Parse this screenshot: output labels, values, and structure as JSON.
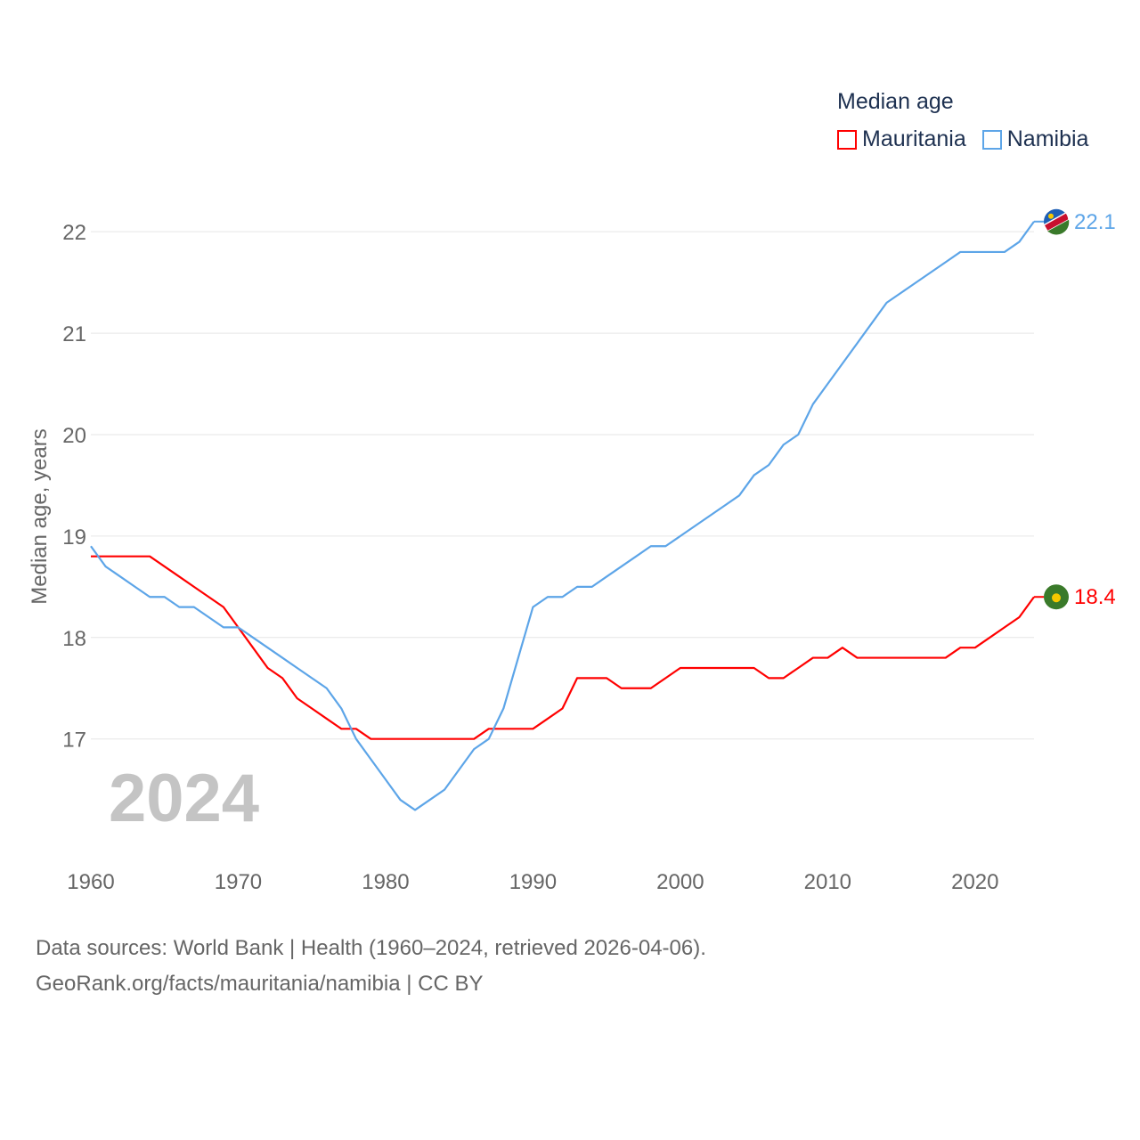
{
  "chart_data": {
    "type": "line",
    "legend_title": "Median age",
    "ylabel": "Median age, years",
    "xlabel": "",
    "xlim": [
      1960,
      2024
    ],
    "ylim": [
      15.9,
      22.3
    ],
    "yticks": [
      17,
      18,
      19,
      20,
      21,
      22
    ],
    "xticks": [
      1960,
      1970,
      1980,
      1990,
      2000,
      2010,
      2020
    ],
    "grid": true,
    "legend_position": "top-right",
    "year_watermark": "2024",
    "x": [
      1960,
      1961,
      1962,
      1963,
      1964,
      1965,
      1966,
      1967,
      1968,
      1969,
      1970,
      1971,
      1972,
      1973,
      1974,
      1975,
      1976,
      1977,
      1978,
      1979,
      1980,
      1981,
      1982,
      1983,
      1984,
      1985,
      1986,
      1987,
      1988,
      1989,
      1990,
      1991,
      1992,
      1993,
      1994,
      1995,
      1996,
      1997,
      1998,
      1999,
      2000,
      2001,
      2002,
      2003,
      2004,
      2005,
      2006,
      2007,
      2008,
      2009,
      2010,
      2011,
      2012,
      2013,
      2014,
      2015,
      2016,
      2017,
      2018,
      2019,
      2020,
      2021,
      2022,
      2023,
      2024
    ],
    "series": [
      {
        "name": "Mauritania",
        "color": "#ff0000",
        "end_label": "18.4",
        "values": [
          18.8,
          18.8,
          18.8,
          18.8,
          18.8,
          18.7,
          18.6,
          18.5,
          18.4,
          18.3,
          18.1,
          17.9,
          17.7,
          17.6,
          17.4,
          17.3,
          17.2,
          17.1,
          17.1,
          17.0,
          17.0,
          17.0,
          17.0,
          17.0,
          17.0,
          17.0,
          17.0,
          17.1,
          17.1,
          17.1,
          17.1,
          17.2,
          17.3,
          17.6,
          17.6,
          17.6,
          17.5,
          17.5,
          17.5,
          17.6,
          17.7,
          17.7,
          17.7,
          17.7,
          17.7,
          17.7,
          17.6,
          17.6,
          17.7,
          17.8,
          17.8,
          17.9,
          17.8,
          17.8,
          17.8,
          17.8,
          17.8,
          17.8,
          17.8,
          17.9,
          17.9,
          18.0,
          18.1,
          18.2,
          18.4
        ]
      },
      {
        "name": "Namibia",
        "color": "#5da5e8",
        "end_label": "22.1",
        "values": [
          18.9,
          18.7,
          18.6,
          18.5,
          18.4,
          18.4,
          18.3,
          18.3,
          18.2,
          18.1,
          18.1,
          18.0,
          17.9,
          17.8,
          17.7,
          17.6,
          17.5,
          17.3,
          17.0,
          16.8,
          16.6,
          16.4,
          16.3,
          16.4,
          16.5,
          16.7,
          16.9,
          17.0,
          17.3,
          17.8,
          18.3,
          18.4,
          18.4,
          18.5,
          18.5,
          18.6,
          18.7,
          18.8,
          18.9,
          18.9,
          19.0,
          19.1,
          19.2,
          19.3,
          19.4,
          19.6,
          19.7,
          19.9,
          20.0,
          20.3,
          20.5,
          20.7,
          20.9,
          21.1,
          21.3,
          21.4,
          21.5,
          21.6,
          21.7,
          21.8,
          21.8,
          21.8,
          21.8,
          21.9,
          22.1
        ]
      }
    ]
  },
  "footer": {
    "source": "Data sources: World Bank | Health (1960–2024, retrieved 2026-04-06).",
    "link": "GeoRank.org/facts/mauritania/namibia | CC BY"
  }
}
